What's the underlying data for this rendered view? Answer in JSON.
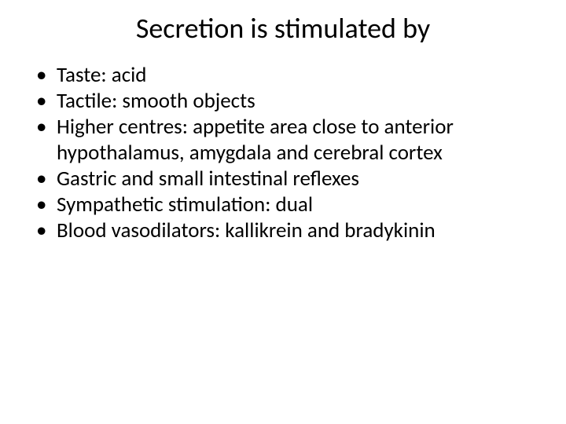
{
  "slide": {
    "title": "Secretion is stimulated by",
    "bullets": [
      "Taste: acid",
      "Tactile: smooth objects",
      "Higher centres: appetite area close to anterior hypothalamus, amygdala and cerebral cortex",
      "Gastric and small intestinal reflexes",
      "Sympathetic stimulation: dual",
      "Blood vasodilators: kallikrein and bradykinin"
    ],
    "background_color": "#ffffff",
    "text_color": "#000000",
    "title_fontsize": 36,
    "body_fontsize": 27,
    "font_family": "Calibri"
  }
}
